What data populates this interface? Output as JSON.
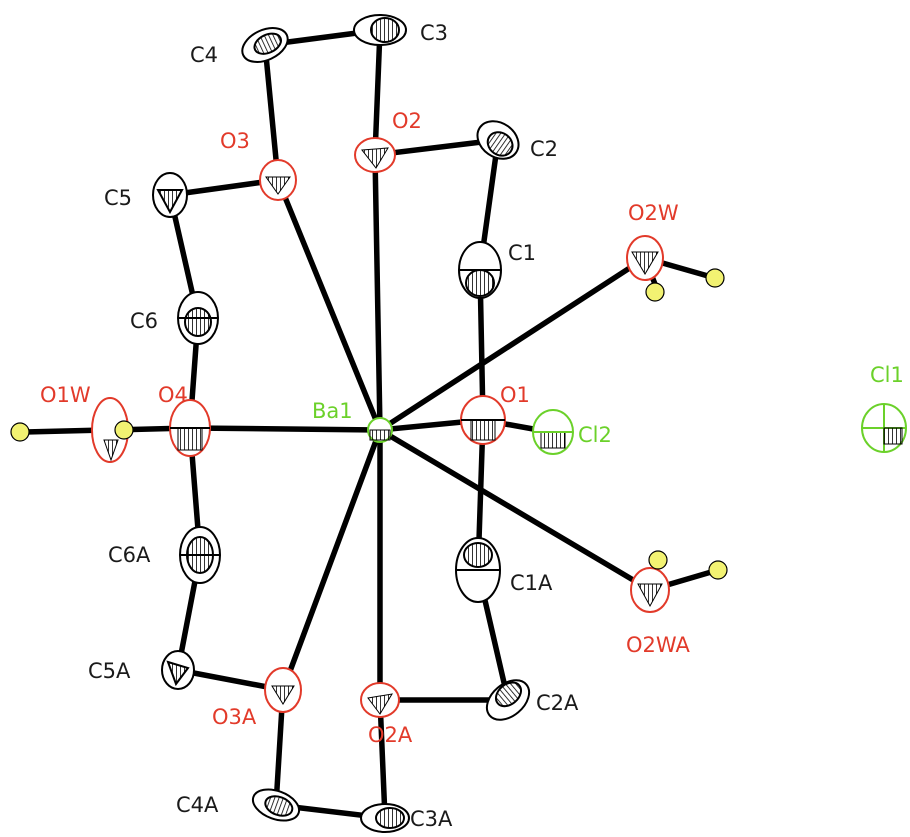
{
  "figure": {
    "atoms": [
      {
        "id": "Ba1",
        "label": "Ba1",
        "element": "Ba",
        "color": "#6bd12a"
      },
      {
        "id": "O1",
        "label": "O1",
        "element": "O",
        "color": "#e23a2a"
      },
      {
        "id": "O2",
        "label": "O2",
        "element": "O",
        "color": "#e23a2a"
      },
      {
        "id": "O3",
        "label": "O3",
        "element": "O",
        "color": "#e23a2a"
      },
      {
        "id": "O4",
        "label": "O4",
        "element": "O",
        "color": "#e23a2a"
      },
      {
        "id": "O2A",
        "label": "O2A",
        "element": "O",
        "color": "#e23a2a"
      },
      {
        "id": "O3A",
        "label": "O3A",
        "element": "O",
        "color": "#e23a2a"
      },
      {
        "id": "O1W",
        "label": "O1W",
        "element": "O",
        "color": "#e23a2a"
      },
      {
        "id": "O2W",
        "label": "O2W",
        "element": "O",
        "color": "#e23a2a"
      },
      {
        "id": "O2WA",
        "label": "O2WA",
        "element": "O",
        "color": "#e23a2a"
      },
      {
        "id": "C1",
        "label": "C1",
        "element": "C",
        "color": "#1a1a1a"
      },
      {
        "id": "C2",
        "label": "C2",
        "element": "C",
        "color": "#1a1a1a"
      },
      {
        "id": "C3",
        "label": "C3",
        "element": "C",
        "color": "#1a1a1a"
      },
      {
        "id": "C4",
        "label": "C4",
        "element": "C",
        "color": "#1a1a1a"
      },
      {
        "id": "C5",
        "label": "C5",
        "element": "C",
        "color": "#1a1a1a"
      },
      {
        "id": "C6",
        "label": "C6",
        "element": "C",
        "color": "#1a1a1a"
      },
      {
        "id": "C1A",
        "label": "C1A",
        "element": "C",
        "color": "#1a1a1a"
      },
      {
        "id": "C2A",
        "label": "C2A",
        "element": "C",
        "color": "#1a1a1a"
      },
      {
        "id": "C3A",
        "label": "C3A",
        "element": "C",
        "color": "#1a1a1a"
      },
      {
        "id": "C4A",
        "label": "C4A",
        "element": "C",
        "color": "#1a1a1a"
      },
      {
        "id": "C5A",
        "label": "C5A",
        "element": "C",
        "color": "#1a1a1a"
      },
      {
        "id": "C6A",
        "label": "C6A",
        "element": "C",
        "color": "#1a1a1a"
      },
      {
        "id": "Cl1",
        "label": "Cl1",
        "element": "Cl",
        "color": "#6bd12a"
      },
      {
        "id": "Cl2",
        "label": "Cl2",
        "element": "Cl",
        "color": "#6bd12a"
      }
    ],
    "hydrogen_color": "#f2f272"
  }
}
